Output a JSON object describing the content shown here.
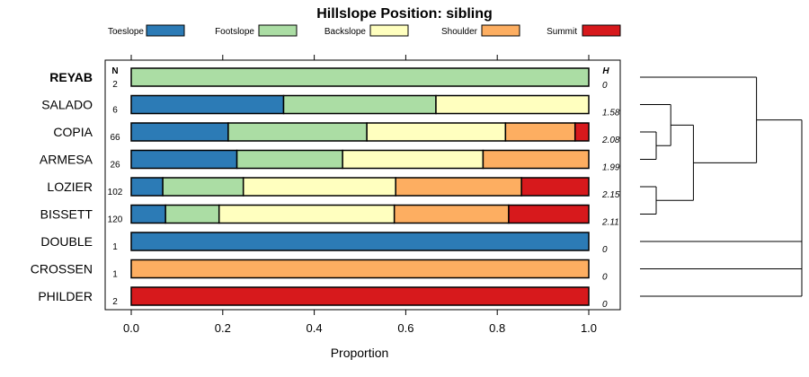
{
  "chart_data": {
    "type": "bar",
    "stacked": true,
    "orientation": "horizontal",
    "title": "Hillslope Position: sibling",
    "xlabel": "Proportion",
    "ylabel": "",
    "xlim": [
      0,
      1
    ],
    "xticks": [
      0.0,
      0.2,
      0.4,
      0.6,
      0.8,
      1.0
    ],
    "xtick_labels": [
      "0.0",
      "0.2",
      "0.4",
      "0.6",
      "0.8",
      "1.0"
    ],
    "legend_position": "top",
    "n_header": "N",
    "h_header": "H",
    "series": [
      {
        "name": "Toeslope",
        "color": "#2C7BB6"
      },
      {
        "name": "Footslope",
        "color": "#ABDDA4"
      },
      {
        "name": "Backslope",
        "color": "#FFFFBF"
      },
      {
        "name": "Shoulder",
        "color": "#FDAE61"
      },
      {
        "name": "Summit",
        "color": "#D7191C"
      }
    ],
    "rows": [
      {
        "label": "REYAB",
        "bold": true,
        "n": "2",
        "h": "0",
        "values": [
          0,
          1,
          0,
          0,
          0
        ]
      },
      {
        "label": "SALADO",
        "bold": false,
        "n": "6",
        "h": "1.58",
        "values": [
          0.333,
          0.333,
          0.334,
          0,
          0
        ]
      },
      {
        "label": "COPIA",
        "bold": false,
        "n": "66",
        "h": "2.08",
        "values": [
          0.212,
          0.303,
          0.303,
          0.152,
          0.03
        ]
      },
      {
        "label": "ARMESA",
        "bold": false,
        "n": "26",
        "h": "1.99",
        "values": [
          0.231,
          0.231,
          0.307,
          0.231,
          0
        ]
      },
      {
        "label": "LOZIER",
        "bold": false,
        "n": "102",
        "h": "2.15",
        "values": [
          0.069,
          0.176,
          0.333,
          0.275,
          0.147
        ]
      },
      {
        "label": "BISSETT",
        "bold": false,
        "n": "120",
        "h": "2.11",
        "values": [
          0.075,
          0.117,
          0.383,
          0.25,
          0.175
        ]
      },
      {
        "label": "DOUBLE",
        "bold": false,
        "n": "1",
        "h": "0",
        "values": [
          1,
          0,
          0,
          0,
          0
        ]
      },
      {
        "label": "CROSSEN",
        "bold": false,
        "n": "1",
        "h": "0",
        "values": [
          0,
          0,
          0,
          1,
          0
        ]
      },
      {
        "label": "PHILDER",
        "bold": false,
        "n": "2",
        "h": "0",
        "values": [
          0,
          0,
          0,
          0,
          1
        ]
      }
    ],
    "dendrogram": {
      "merges": [
        {
          "left": "LOZIER",
          "right": "BISSETT",
          "height": 0.1
        },
        {
          "left": "COPIA",
          "right": "ARMESA",
          "height": 0.1
        },
        {
          "left": "SALADO",
          "right": "merge-1",
          "height": 0.19
        },
        {
          "left": "merge-2",
          "right": "merge-0",
          "height": 0.33
        },
        {
          "left": "REYAB",
          "right": "merge-3",
          "height": 0.72
        },
        {
          "left": "merge-4",
          "right": "DOUBLE",
          "height": 1.0
        },
        {
          "left": "merge-5",
          "right": "CROSSEN",
          "height": 1.0
        },
        {
          "left": "merge-6",
          "right": "PHILDER",
          "height": 1.0
        }
      ]
    }
  }
}
